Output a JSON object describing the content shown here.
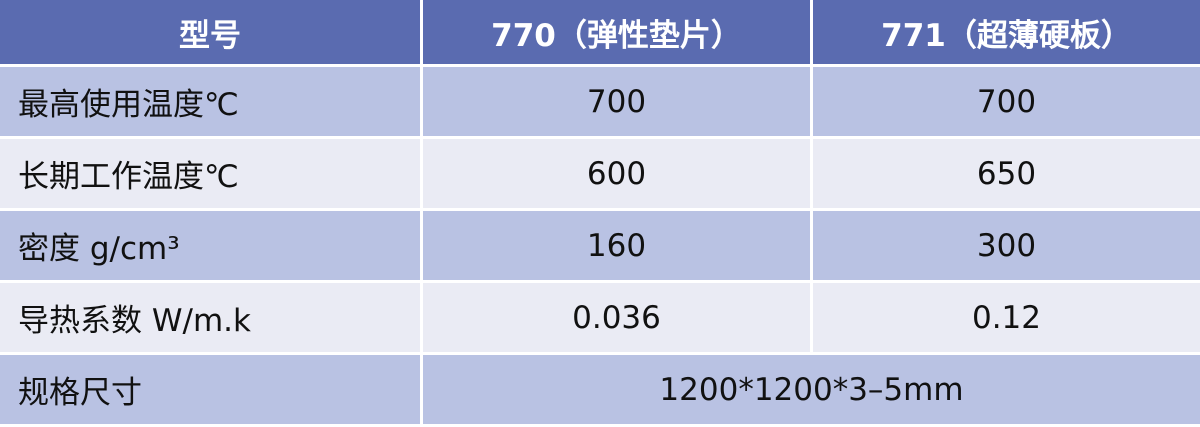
{
  "colors": {
    "header": "#5a6bb0",
    "row_blue": "#b9c2e3",
    "row_gray": "#eaebf4"
  },
  "header": [
    "型号",
    "770（弹性垫片）",
    "771（超薄硬板）"
  ],
  "rows": [
    {
      "label": "最高使用温度℃",
      "v770": "700",
      "v771": "700"
    },
    {
      "label": "长期工作温度℃",
      "v770": "600",
      "v771": "650"
    },
    {
      "label": "密度 g/cm³",
      "v770": "160",
      "v771": "300"
    },
    {
      "label": "导热系数 W/m.k",
      "v770": "0.036",
      "v771": "0.12"
    }
  ],
  "size_row": {
    "label": "规格尺寸",
    "value": "1200*1200*3–5mm"
  }
}
